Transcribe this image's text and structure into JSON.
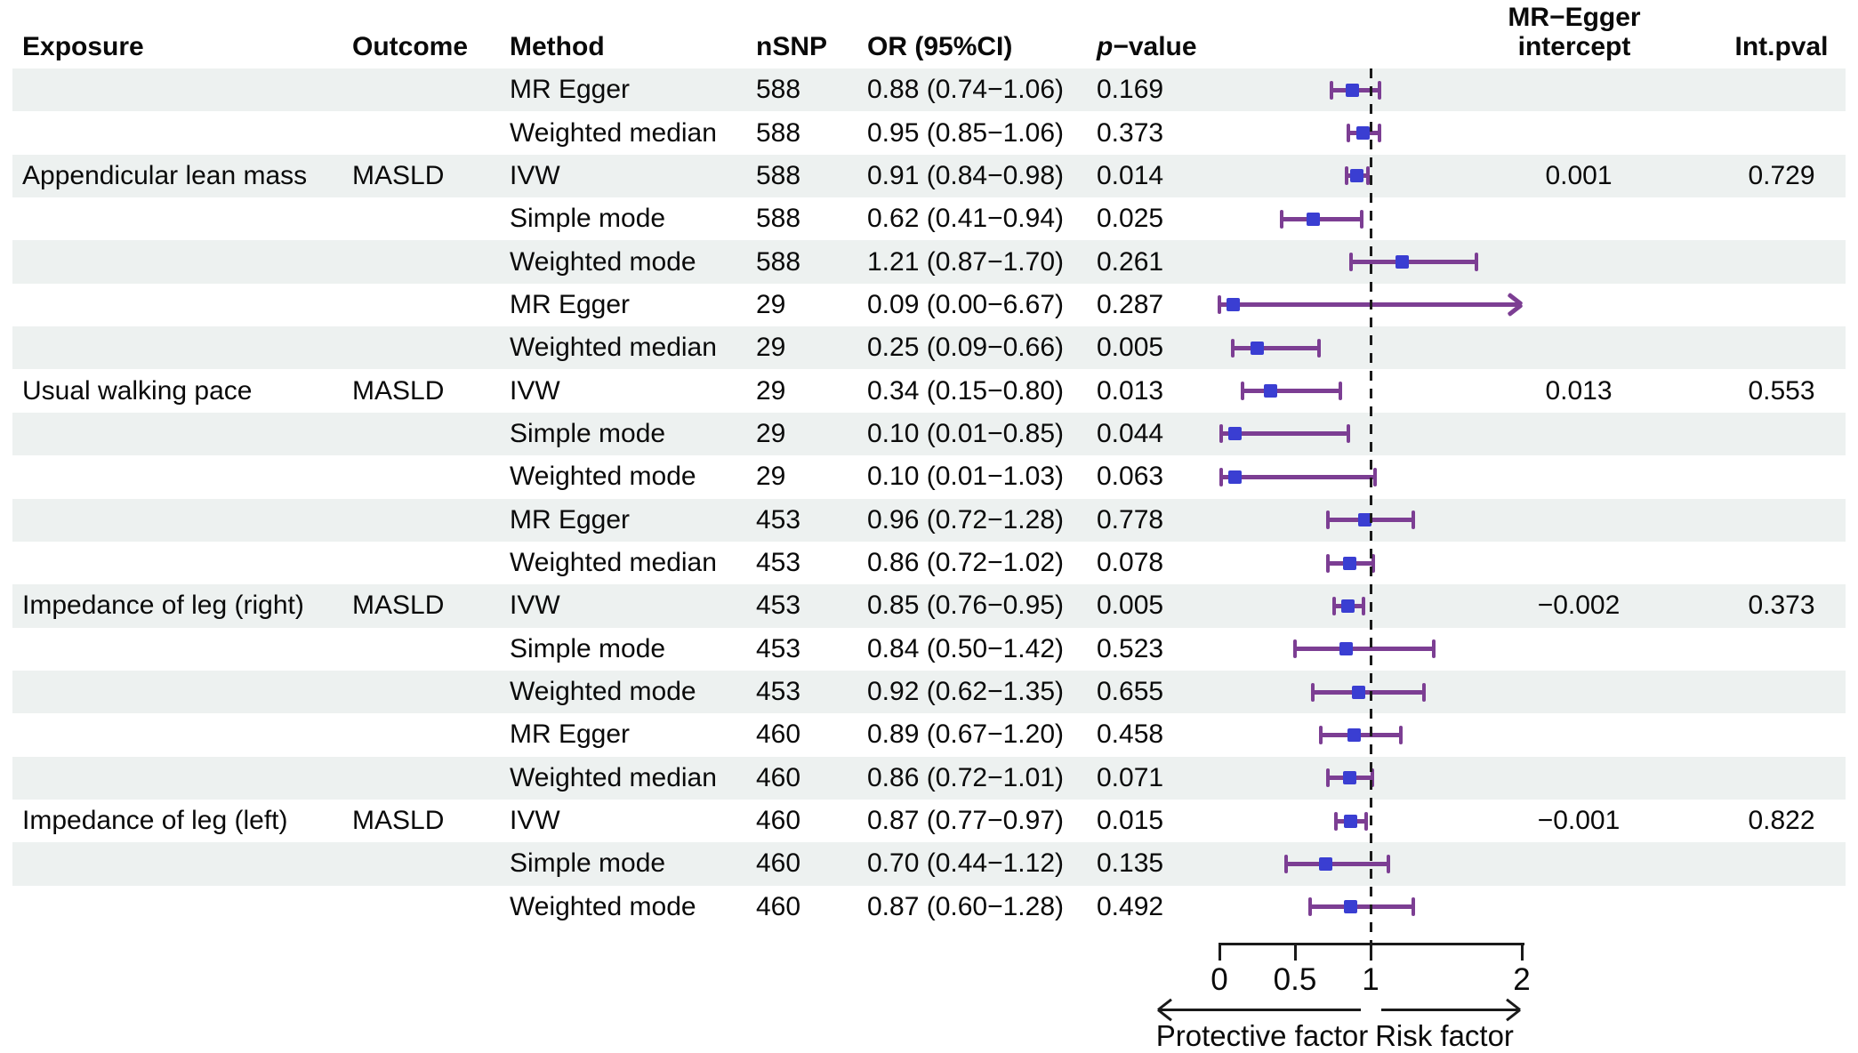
{
  "header": {
    "exposure": "Exposure",
    "outcome": "Outcome",
    "method": "Method",
    "nsnp": "nSNP",
    "or_ci": "OR (95%CI)",
    "pvalue_p": "p",
    "pvalue_rest": "−value",
    "egger_line1": "MR−Egger",
    "egger_line2": "intercept",
    "intpval": "Int.pval"
  },
  "axis": {
    "ticks": [
      "0",
      "0.5",
      "1",
      "2"
    ],
    "tick_values": [
      0,
      0.5,
      1,
      2
    ],
    "xlim": [
      0,
      2
    ],
    "reference_line": 1,
    "left_label": "Protective factor",
    "right_label": "Risk factor"
  },
  "colors": {
    "stripe": "#edf1f0",
    "ci_bar": "#7c3e93",
    "marker": "#3a3ed2",
    "reference_line": "#1a1a1a",
    "text": "#0a0a0a"
  },
  "chart_data": {
    "type": "scatter",
    "subtype": "forest-plot",
    "xlim": [
      0,
      2
    ],
    "reference_line": 1,
    "xlabel_left": "Protective factor",
    "xlabel_right": "Risk factor",
    "rows": [
      {
        "exposure": "",
        "outcome": "",
        "method": "MR Egger",
        "nsnp": "588",
        "or_ci": "0.88 (0.74−1.06)",
        "pvalue": "0.169",
        "or": 0.88,
        "lo": 0.74,
        "hi": 1.06,
        "egger_intercept": "",
        "int_pval": ""
      },
      {
        "exposure": "",
        "outcome": "",
        "method": "Weighted median",
        "nsnp": "588",
        "or_ci": "0.95 (0.85−1.06)",
        "pvalue": "0.373",
        "or": 0.95,
        "lo": 0.85,
        "hi": 1.06,
        "egger_intercept": "",
        "int_pval": ""
      },
      {
        "exposure": "Appendicular lean mass",
        "outcome": "MASLD",
        "method": "IVW",
        "nsnp": "588",
        "or_ci": "0.91 (0.84−0.98)",
        "pvalue": "0.014",
        "or": 0.91,
        "lo": 0.84,
        "hi": 0.98,
        "egger_intercept": "0.001",
        "int_pval": "0.729"
      },
      {
        "exposure": "",
        "outcome": "",
        "method": "Simple mode",
        "nsnp": "588",
        "or_ci": "0.62 (0.41−0.94)",
        "pvalue": "0.025",
        "or": 0.62,
        "lo": 0.41,
        "hi": 0.94,
        "egger_intercept": "",
        "int_pval": ""
      },
      {
        "exposure": "",
        "outcome": "",
        "method": "Weighted mode",
        "nsnp": "588",
        "or_ci": "1.21 (0.87−1.70)",
        "pvalue": "0.261",
        "or": 1.21,
        "lo": 0.87,
        "hi": 1.7,
        "egger_intercept": "",
        "int_pval": ""
      },
      {
        "exposure": "",
        "outcome": "",
        "method": "MR Egger",
        "nsnp": "29",
        "or_ci": "0.09 (0.00−6.67)",
        "pvalue": "0.287",
        "or": 0.09,
        "lo": 0.0,
        "hi": 6.67,
        "egger_intercept": "",
        "int_pval": ""
      },
      {
        "exposure": "",
        "outcome": "",
        "method": "Weighted median",
        "nsnp": "29",
        "or_ci": "0.25 (0.09−0.66)",
        "pvalue": "0.005",
        "or": 0.25,
        "lo": 0.09,
        "hi": 0.66,
        "egger_intercept": "",
        "int_pval": ""
      },
      {
        "exposure": "Usual walking pace",
        "outcome": "MASLD",
        "method": "IVW",
        "nsnp": "29",
        "or_ci": "0.34 (0.15−0.80)",
        "pvalue": "0.013",
        "or": 0.34,
        "lo": 0.15,
        "hi": 0.8,
        "egger_intercept": "0.013",
        "int_pval": "0.553"
      },
      {
        "exposure": "",
        "outcome": "",
        "method": "Simple mode",
        "nsnp": "29",
        "or_ci": "0.10 (0.01−0.85)",
        "pvalue": "0.044",
        "or": 0.1,
        "lo": 0.01,
        "hi": 0.85,
        "egger_intercept": "",
        "int_pval": ""
      },
      {
        "exposure": "",
        "outcome": "",
        "method": "Weighted mode",
        "nsnp": "29",
        "or_ci": "0.10 (0.01−1.03)",
        "pvalue": "0.063",
        "or": 0.1,
        "lo": 0.01,
        "hi": 1.03,
        "egger_intercept": "",
        "int_pval": ""
      },
      {
        "exposure": "",
        "outcome": "",
        "method": "MR Egger",
        "nsnp": "453",
        "or_ci": "0.96 (0.72−1.28)",
        "pvalue": "0.778",
        "or": 0.96,
        "lo": 0.72,
        "hi": 1.28,
        "egger_intercept": "",
        "int_pval": ""
      },
      {
        "exposure": "",
        "outcome": "",
        "method": "Weighted median",
        "nsnp": "453",
        "or_ci": "0.86 (0.72−1.02)",
        "pvalue": "0.078",
        "or": 0.86,
        "lo": 0.72,
        "hi": 1.02,
        "egger_intercept": "",
        "int_pval": ""
      },
      {
        "exposure": "Impedance of leg (right)",
        "outcome": "MASLD",
        "method": "IVW",
        "nsnp": "453",
        "or_ci": "0.85 (0.76−0.95)",
        "pvalue": "0.005",
        "or": 0.85,
        "lo": 0.76,
        "hi": 0.95,
        "egger_intercept": "−0.002",
        "int_pval": "0.373"
      },
      {
        "exposure": "",
        "outcome": "",
        "method": "Simple mode",
        "nsnp": "453",
        "or_ci": "0.84 (0.50−1.42)",
        "pvalue": "0.523",
        "or": 0.84,
        "lo": 0.5,
        "hi": 1.42,
        "egger_intercept": "",
        "int_pval": ""
      },
      {
        "exposure": "",
        "outcome": "",
        "method": "Weighted mode",
        "nsnp": "453",
        "or_ci": "0.92 (0.62−1.35)",
        "pvalue": "0.655",
        "or": 0.92,
        "lo": 0.62,
        "hi": 1.35,
        "egger_intercept": "",
        "int_pval": ""
      },
      {
        "exposure": "",
        "outcome": "",
        "method": "MR Egger",
        "nsnp": "460",
        "or_ci": "0.89 (0.67−1.20)",
        "pvalue": "0.458",
        "or": 0.89,
        "lo": 0.67,
        "hi": 1.2,
        "egger_intercept": "",
        "int_pval": ""
      },
      {
        "exposure": "",
        "outcome": "",
        "method": "Weighted median",
        "nsnp": "460",
        "or_ci": "0.86 (0.72−1.01)",
        "pvalue": "0.071",
        "or": 0.86,
        "lo": 0.72,
        "hi": 1.01,
        "egger_intercept": "",
        "int_pval": ""
      },
      {
        "exposure": "Impedance of leg (left)",
        "outcome": "MASLD",
        "method": "IVW",
        "nsnp": "460",
        "or_ci": "0.87 (0.77−0.97)",
        "pvalue": "0.015",
        "or": 0.87,
        "lo": 0.77,
        "hi": 0.97,
        "egger_intercept": "−0.001",
        "int_pval": "0.822"
      },
      {
        "exposure": "",
        "outcome": "",
        "method": "Simple mode",
        "nsnp": "460",
        "or_ci": "0.70 (0.44−1.12)",
        "pvalue": "0.135",
        "or": 0.7,
        "lo": 0.44,
        "hi": 1.12,
        "egger_intercept": "",
        "int_pval": ""
      },
      {
        "exposure": "",
        "outcome": "",
        "method": "Weighted mode",
        "nsnp": "460",
        "or_ci": "0.87 (0.60−1.28)",
        "pvalue": "0.492",
        "or": 0.87,
        "lo": 0.6,
        "hi": 1.28,
        "egger_intercept": "",
        "int_pval": ""
      }
    ]
  }
}
